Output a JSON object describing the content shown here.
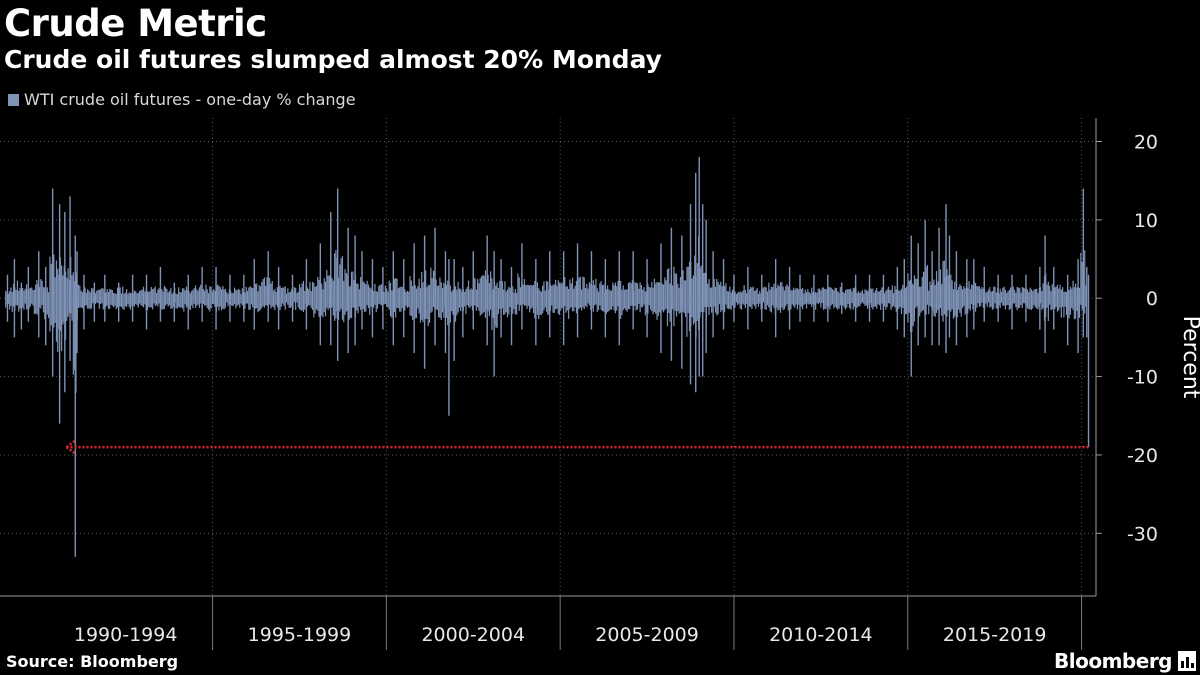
{
  "title": "Crude Metric",
  "subtitle": "Crude oil futures slumped almost 20% Monday",
  "legend": {
    "label": "WTI crude oil futures - one-day % change",
    "color": "#7f93b7"
  },
  "source": "Source: Bloomberg",
  "logo": {
    "text": "Bloomberg",
    "icon": "bloomberg-chart-badge-icon"
  },
  "chart_data": {
    "type": "bar",
    "title": "Crude Metric",
    "subtitle": "Crude oil futures slumped almost 20% Monday",
    "ylabel": "Percent",
    "ylim": [
      -38,
      23
    ],
    "yticks": [
      20,
      10,
      0,
      -10,
      -20,
      -30
    ],
    "ytick_labels": [
      "20",
      "10",
      "0",
      "-10",
      "-20",
      "-30"
    ],
    "x_categories": [
      "1990-1994",
      "1995-1999",
      "2000-2004",
      "2005-2009",
      "2010-2014",
      "2015-2019"
    ],
    "x_range": [
      1989.0,
      2020.3
    ],
    "grid": "dotted",
    "series": [
      {
        "name": "WTI crude oil futures - one-day % change",
        "color": "#7f93b7",
        "x": [
          1989.1,
          1989.3,
          1989.5,
          1989.7,
          1990.0,
          1990.2,
          1990.4,
          1990.6,
          1990.75,
          1990.9,
          1991.05,
          1991.1,
          1991.3,
          1991.6,
          1991.9,
          1992.3,
          1992.7,
          1993.1,
          1993.5,
          1993.9,
          1994.3,
          1994.7,
          1995.1,
          1995.5,
          1995.9,
          1996.2,
          1996.6,
          1996.9,
          1997.3,
          1997.7,
          1998.1,
          1998.4,
          1998.6,
          1998.9,
          1999.1,
          1999.3,
          1999.6,
          1999.9,
          2000.2,
          2000.5,
          2000.8,
          2001.1,
          2001.4,
          2001.7,
          2001.8,
          2001.95,
          2002.2,
          2002.5,
          2002.9,
          2003.1,
          2003.3,
          2003.6,
          2003.9,
          2004.3,
          2004.7,
          2005.1,
          2005.5,
          2005.9,
          2006.3,
          2006.7,
          2007.1,
          2007.5,
          2007.9,
          2008.2,
          2008.5,
          2008.75,
          2008.9,
          2009.0,
          2009.1,
          2009.2,
          2009.4,
          2009.7,
          2010.0,
          2010.4,
          2010.8,
          2011.2,
          2011.6,
          2011.9,
          2012.3,
          2012.7,
          2013.1,
          2013.5,
          2013.9,
          2014.3,
          2014.7,
          2014.9,
          2015.1,
          2015.3,
          2015.5,
          2015.7,
          2015.9,
          2016.1,
          2016.2,
          2016.4,
          2016.7,
          2016.9,
          2017.2,
          2017.6,
          2018.0,
          2018.4,
          2018.8,
          2018.95,
          2019.2,
          2019.6,
          2019.9,
          2020.05,
          2020.15,
          2020.2
        ],
        "high": [
          3,
          5,
          2,
          4,
          6,
          4,
          14,
          12,
          11,
          13,
          8,
          6,
          3,
          2,
          3,
          2,
          3,
          3,
          4,
          2,
          3,
          4,
          4,
          3,
          3,
          5,
          6,
          4,
          3,
          5,
          7,
          11,
          14,
          9,
          8,
          6,
          5,
          4,
          6,
          5,
          7,
          8,
          9,
          6,
          5,
          5,
          4,
          6,
          8,
          6,
          5,
          4,
          7,
          5,
          6,
          6,
          7,
          6,
          5,
          6,
          6,
          5,
          7,
          9,
          8,
          12,
          16,
          18,
          12,
          10,
          6,
          5,
          3,
          4,
          3,
          5,
          4,
          3,
          3,
          3,
          2,
          3,
          3,
          3,
          4,
          5,
          8,
          7,
          10,
          6,
          9,
          12,
          8,
          6,
          5,
          5,
          4,
          3,
          3,
          3,
          4,
          8,
          4,
          3,
          5,
          14,
          4,
          3
        ],
        "low": [
          -3,
          -5,
          -4,
          -3,
          -5,
          -6,
          -10,
          -16,
          -12,
          -8,
          -33,
          -7,
          -4,
          -3,
          -3,
          -3,
          -3,
          -4,
          -3,
          -3,
          -4,
          -3,
          -4,
          -3,
          -3,
          -4,
          -3,
          -4,
          -3,
          -4,
          -6,
          -6,
          -8,
          -7,
          -6,
          -4,
          -5,
          -4,
          -6,
          -5,
          -7,
          -9,
          -6,
          -7,
          -15,
          -8,
          -5,
          -4,
          -6,
          -10,
          -5,
          -6,
          -4,
          -6,
          -5,
          -6,
          -5,
          -4,
          -5,
          -6,
          -4,
          -5,
          -7,
          -8,
          -9,
          -11,
          -12,
          -10,
          -10,
          -7,
          -5,
          -4,
          -3,
          -4,
          -3,
          -5,
          -4,
          -3,
          -3,
          -3,
          -2,
          -3,
          -3,
          -3,
          -4,
          -5,
          -10,
          -6,
          -5,
          -6,
          -6,
          -7,
          -5,
          -6,
          -5,
          -4,
          -3,
          -3,
          -4,
          -3,
          -4,
          -7,
          -4,
          -6,
          -7,
          -5,
          -5,
          -19
        ]
      }
    ],
    "annotation": {
      "type": "dotted-arrow",
      "y": -19,
      "from_x": 2020.2,
      "to_x": 1990.8,
      "color": "#e0282e"
    }
  }
}
